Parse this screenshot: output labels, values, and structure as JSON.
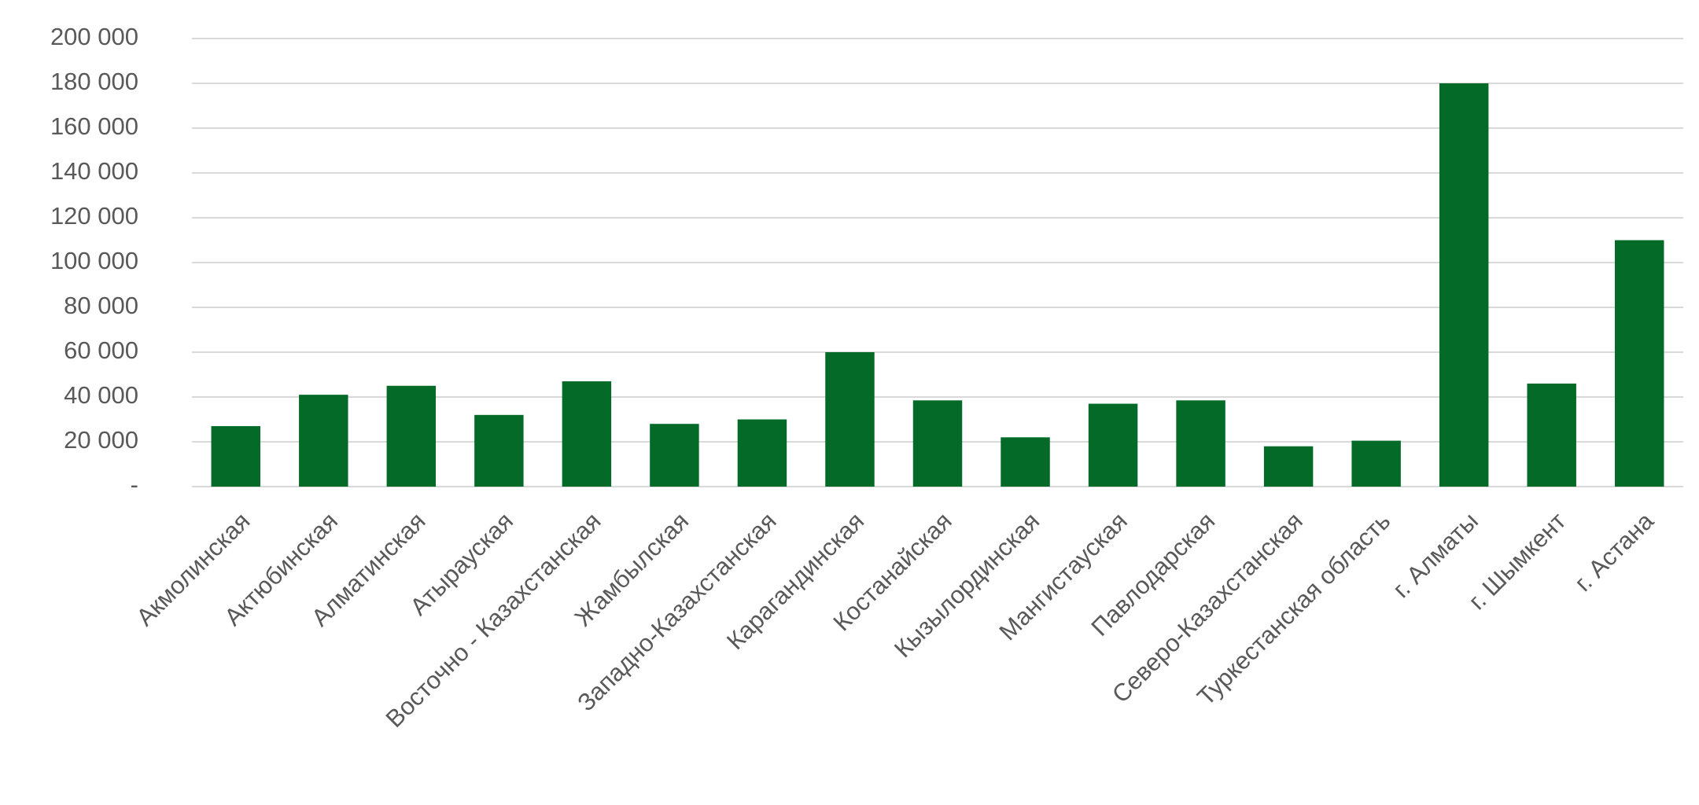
{
  "chart_data": {
    "type": "bar",
    "categories": [
      "Акмолинская",
      "Актюбинская",
      "Алматинская",
      "Атырауская",
      "Восточно - Казахстанская",
      "Жамбылская",
      "Западно-Казахстанская",
      "Карагандинская",
      "Костанайская",
      "Кызылординская",
      "Мангистауская",
      "Павлодарская",
      "Северо-Казахстанская",
      "Туркестанская область",
      "г. Алматы",
      "г. Шымкент",
      "г. Астана"
    ],
    "values": [
      27000,
      41000,
      45000,
      32000,
      47000,
      28000,
      30000,
      60000,
      38500,
      22000,
      37000,
      38500,
      18000,
      20500,
      180000,
      46000,
      110000
    ],
    "color": "#036b27",
    "ylim": [
      0,
      200000
    ],
    "yticks": [
      {
        "value": 0,
        "label": "-"
      },
      {
        "value": 20000,
        "label": "20 000"
      },
      {
        "value": 40000,
        "label": "40 000"
      },
      {
        "value": 60000,
        "label": "60 000"
      },
      {
        "value": 80000,
        "label": "80 000"
      },
      {
        "value": 100000,
        "label": "100 000"
      },
      {
        "value": 120000,
        "label": "120 000"
      },
      {
        "value": 140000,
        "label": "140 000"
      },
      {
        "value": 160000,
        "label": "160 000"
      },
      {
        "value": 180000,
        "label": "180 000"
      },
      {
        "value": 200000,
        "label": "200 000"
      }
    ],
    "grid": true
  }
}
